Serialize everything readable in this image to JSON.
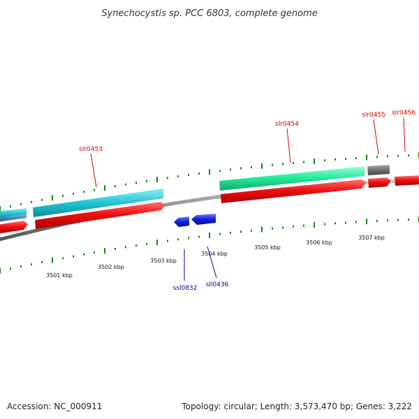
{
  "title": "Synechocystis sp. PCC 6803, complete genome",
  "footer": {
    "accession": "Accession: NC_000911",
    "summary": "Topology: circular; Length: 3,573,470 bp; Genes: 3,222"
  },
  "colors": {
    "forward_label": "#cc0000",
    "reverse_label": "#000099",
    "tick": "#118811",
    "backbone": "#888888",
    "cds": "#ee1111",
    "gene_cyan": "#22c4d0",
    "gene_green": "#22e89a",
    "gene_gray": "#6f6f6f",
    "gene_steel": "#4a7fb0",
    "reverse_gene": "#1122dd"
  },
  "scale": {
    "unit": "kbp",
    "labels": [
      "3501 kbp",
      "3502 kbp",
      "3503 kbp",
      "3504 kbp",
      "3505 kbp",
      "3506 kbp",
      "3507 kbp"
    ]
  },
  "genes": {
    "forward": [
      {
        "name": "slr0453",
        "color": "cyan"
      },
      {
        "name": "slr0454",
        "color": "green"
      },
      {
        "name": "slr0455",
        "color": "gray"
      },
      {
        "name": "slr0456",
        "color": "red"
      }
    ],
    "reverse": [
      {
        "name": "ssl0832"
      },
      {
        "name": "sll0436"
      }
    ]
  }
}
